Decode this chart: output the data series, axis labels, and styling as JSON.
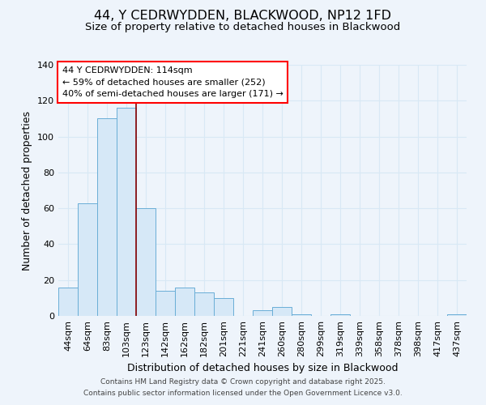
{
  "title": "44, Y CEDRWYDDEN, BLACKWOOD, NP12 1FD",
  "subtitle": "Size of property relative to detached houses in Blackwood",
  "xlabel": "Distribution of detached houses by size in Blackwood",
  "ylabel": "Number of detached properties",
  "bar_labels": [
    "44sqm",
    "64sqm",
    "83sqm",
    "103sqm",
    "123sqm",
    "142sqm",
    "162sqm",
    "182sqm",
    "201sqm",
    "221sqm",
    "241sqm",
    "260sqm",
    "280sqm",
    "299sqm",
    "319sqm",
    "339sqm",
    "358sqm",
    "378sqm",
    "398sqm",
    "417sqm",
    "437sqm"
  ],
  "bar_values": [
    16,
    63,
    110,
    116,
    60,
    14,
    16,
    13,
    10,
    0,
    3,
    5,
    1,
    0,
    1,
    0,
    0,
    0,
    0,
    0,
    1
  ],
  "bar_color": "#d6e8f7",
  "bar_edgecolor": "#6aaed6",
  "grid_color": "#d8e8f5",
  "background_color": "#eef4fb",
  "ylim": [
    0,
    140
  ],
  "yticks": [
    0,
    20,
    40,
    60,
    80,
    100,
    120,
    140
  ],
  "red_line_bar_index": 3,
  "annotation_box_text": "44 Y CEDRWYDDEN: 114sqm\n← 59% of detached houses are smaller (252)\n40% of semi-detached houses are larger (171) →",
  "footer_line1": "Contains HM Land Registry data © Crown copyright and database right 2025.",
  "footer_line2": "Contains public sector information licensed under the Open Government Licence v3.0.",
  "title_fontsize": 11.5,
  "subtitle_fontsize": 9.5,
  "xlabel_fontsize": 9,
  "ylabel_fontsize": 9,
  "tick_fontsize": 8,
  "annotation_fontsize": 8,
  "footer_fontsize": 6.5
}
